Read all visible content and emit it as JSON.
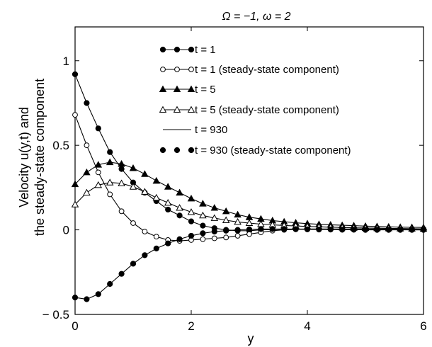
{
  "chart_data": {
    "type": "line",
    "title": "Ω = −1,  ω = 2",
    "xlabel": "y",
    "ylabel_line1": "Velocity u(y,t) and",
    "ylabel_line2": "the steady-state component",
    "xlim": [
      0,
      6
    ],
    "ylim": [
      -0.5,
      1.2
    ],
    "xticks": [
      0,
      2,
      4,
      6
    ],
    "xtick_labels": [
      "0",
      "2",
      "4",
      "6"
    ],
    "yticks": [
      -0.5,
      0,
      0.5,
      1
    ],
    "ytick_labels": [
      "− 0.5",
      "0",
      "0.5",
      "1"
    ],
    "grid": false,
    "legend_position": "top-right",
    "series": [
      {
        "name": "t = 1",
        "style": "line-filled-circle",
        "x": [
          0,
          0.2,
          0.4,
          0.6,
          0.8,
          1.0,
          1.2,
          1.4,
          1.6,
          1.8,
          2.0,
          2.2,
          2.4,
          2.6,
          2.8,
          3.0,
          3.2,
          3.4,
          3.6,
          3.8,
          4.0,
          4.2,
          4.4,
          4.6,
          4.8,
          5.0,
          5.2,
          5.4,
          5.6,
          5.8,
          6.0
        ],
        "values": [
          0.92,
          0.75,
          0.6,
          0.46,
          0.36,
          0.28,
          0.22,
          0.17,
          0.12,
          0.085,
          0.05,
          0.025,
          0.01,
          0.0,
          -0.005,
          -0.005,
          0.0,
          0.002,
          0.004,
          0.005,
          0.005,
          0.005,
          0.005,
          0.005,
          0.005,
          0.005,
          0.005,
          0.005,
          0.005,
          0.005,
          0.005
        ]
      },
      {
        "name": "t = 1 (steady-state component)",
        "style": "line-open-circle",
        "x": [
          0,
          0.2,
          0.4,
          0.6,
          0.8,
          1.0,
          1.2,
          1.4,
          1.6,
          1.8,
          2.0,
          2.2,
          2.4,
          2.6,
          2.8,
          3.0,
          3.2,
          3.4,
          3.6,
          3.8,
          4.0,
          4.2,
          4.4,
          4.6,
          4.8,
          5.0,
          5.2,
          5.4,
          5.6,
          5.8,
          6.0
        ],
        "values": [
          0.68,
          0.5,
          0.34,
          0.21,
          0.11,
          0.04,
          -0.01,
          -0.04,
          -0.06,
          -0.065,
          -0.06,
          -0.055,
          -0.05,
          -0.045,
          -0.035,
          -0.025,
          -0.015,
          -0.005,
          0.0,
          0.003,
          0.005,
          0.005,
          0.005,
          0.005,
          0.005,
          0.004,
          0.003,
          0.002,
          0.001,
          0.0,
          0.0
        ]
      },
      {
        "name": "t = 5",
        "style": "line-filled-triangle",
        "x": [
          0,
          0.2,
          0.4,
          0.6,
          0.8,
          1.0,
          1.2,
          1.4,
          1.6,
          1.8,
          2.0,
          2.2,
          2.4,
          2.6,
          2.8,
          3.0,
          3.2,
          3.4,
          3.6,
          3.8,
          4.0,
          4.2,
          4.4,
          4.6,
          4.8,
          5.0,
          5.2,
          5.4,
          5.6,
          5.8,
          6.0
        ],
        "values": [
          0.27,
          0.34,
          0.385,
          0.4,
          0.39,
          0.365,
          0.33,
          0.29,
          0.255,
          0.22,
          0.185,
          0.155,
          0.13,
          0.11,
          0.09,
          0.075,
          0.065,
          0.055,
          0.048,
          0.042,
          0.037,
          0.033,
          0.03,
          0.027,
          0.025,
          0.022,
          0.02,
          0.018,
          0.016,
          0.015,
          0.014
        ]
      },
      {
        "name": "t = 5 (steady-state component)",
        "style": "line-open-triangle",
        "x": [
          0,
          0.2,
          0.4,
          0.6,
          0.8,
          1.0,
          1.2,
          1.4,
          1.6,
          1.8,
          2.0,
          2.2,
          2.4,
          2.6,
          2.8,
          3.0,
          3.2,
          3.4,
          3.6,
          3.8,
          4.0,
          4.2,
          4.4,
          4.6,
          4.8,
          5.0,
          5.2,
          5.4,
          5.6,
          5.8,
          6.0
        ],
        "values": [
          0.15,
          0.22,
          0.265,
          0.28,
          0.275,
          0.255,
          0.225,
          0.19,
          0.16,
          0.13,
          0.105,
          0.085,
          0.07,
          0.057,
          0.047,
          0.04,
          0.034,
          0.03,
          0.026,
          0.023,
          0.02,
          0.018,
          0.016,
          0.014,
          0.012,
          0.011,
          0.01,
          0.009,
          0.008,
          0.007,
          0.006
        ]
      },
      {
        "name": "t = 930",
        "style": "line",
        "x": [
          0,
          0.2,
          0.4,
          0.6,
          0.8,
          1.0,
          1.2,
          1.4,
          1.6,
          1.8,
          2.0,
          2.2,
          2.4,
          2.6,
          2.8,
          3.0,
          3.2,
          3.4,
          3.6,
          3.8,
          4.0,
          4.2,
          4.4,
          4.6,
          4.8,
          5.0,
          5.2,
          5.4,
          5.6,
          5.8,
          6.0
        ],
        "values": [
          -0.4,
          -0.41,
          -0.38,
          -0.32,
          -0.26,
          -0.2,
          -0.15,
          -0.11,
          -0.08,
          -0.055,
          -0.035,
          -0.02,
          -0.01,
          -0.005,
          0.0,
          0.003,
          0.005,
          0.005,
          0.005,
          0.004,
          0.003,
          0.002,
          0.002,
          0.001,
          0.001,
          0.0,
          0.0,
          0.0,
          0.0,
          0.0,
          0.0
        ]
      },
      {
        "name": "t = 930 (steady-state component)",
        "style": "filled-circle",
        "x": [
          0,
          0.2,
          0.4,
          0.6,
          0.8,
          1.0,
          1.2,
          1.4,
          1.6,
          1.8,
          2.0,
          2.2,
          2.4,
          2.6,
          2.8,
          3.0,
          3.2,
          3.4,
          3.6,
          3.8,
          4.0,
          4.2,
          4.4,
          4.6,
          4.8,
          5.0,
          5.2,
          5.4,
          5.6,
          5.8,
          6.0
        ],
        "values": [
          -0.4,
          -0.41,
          -0.38,
          -0.32,
          -0.26,
          -0.2,
          -0.15,
          -0.11,
          -0.08,
          -0.055,
          -0.035,
          -0.02,
          -0.01,
          -0.005,
          0.0,
          0.003,
          0.005,
          0.005,
          0.005,
          0.004,
          0.003,
          0.002,
          0.002,
          0.001,
          0.001,
          0.0,
          0.0,
          0.0,
          0.0,
          0.0,
          0.0
        ]
      }
    ]
  }
}
